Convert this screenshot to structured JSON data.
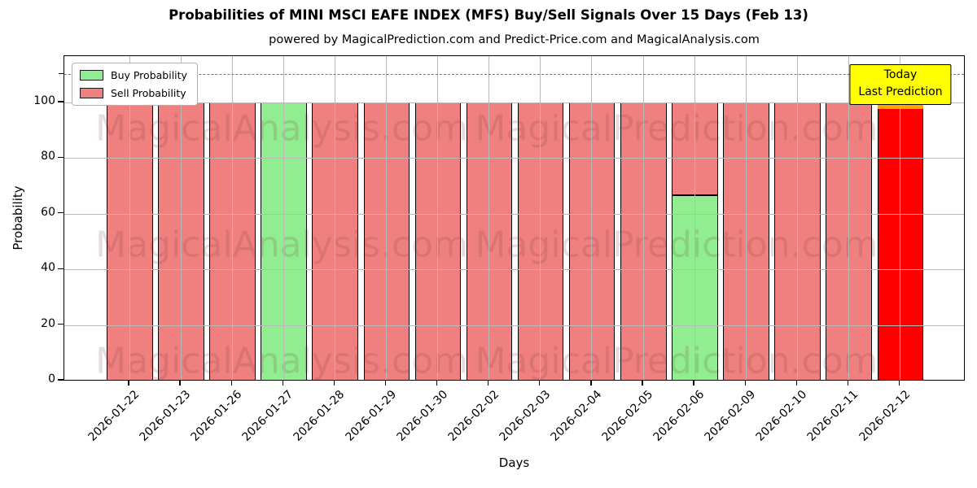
{
  "chart_data": {
    "type": "bar",
    "stacked": true,
    "title": "Probabilities of MINI MSCI EAFE INDEX (MFS) Buy/Sell Signals Over 15 Days (Feb 13)",
    "subtitle": "powered by MagicalPrediction.com and Predict-Price.com and MagicalAnalysis.com",
    "xlabel": "Days",
    "ylabel": "Probability",
    "ylim": [
      0,
      116.7
    ],
    "yticks": [
      0,
      20,
      40,
      60,
      80,
      100
    ],
    "grid": true,
    "dashed_line_y": 110,
    "legend_position": "upper-left",
    "categories": [
      "2026-01-22",
      "2026-01-23",
      "2026-01-26",
      "2026-01-27",
      "2026-01-28",
      "2026-01-29",
      "2026-01-30",
      "2026-02-02",
      "2026-02-03",
      "2026-02-04",
      "2026-02-05",
      "2026-02-06",
      "2026-02-09",
      "2026-02-10",
      "2026-02-11",
      "2026-02-12"
    ],
    "series": [
      {
        "name": "Buy Probability",
        "color": "#90ee90",
        "values": [
          0,
          0,
          0,
          100,
          0,
          0,
          0,
          0,
          0,
          0,
          0,
          66.67,
          0,
          0,
          0,
          0
        ]
      },
      {
        "name": "Sell Probability",
        "color": "#f08080",
        "values": [
          100,
          100,
          100,
          0,
          100,
          100,
          100,
          100,
          100,
          100,
          100,
          33.33,
          100,
          100,
          100,
          100
        ]
      }
    ],
    "today": {
      "index": 15,
      "bar_color": "#ff0000",
      "accent_color": "#ffa500"
    },
    "annotation": {
      "lines": [
        "Today",
        "Last Prediction"
      ],
      "bg_color": "#ffff00"
    },
    "watermarks": {
      "left": "MagicalAnalysis.com",
      "right": "MagicalPrediction.com"
    },
    "colors": {
      "grid": "#b9b9b9",
      "dashed_line": "#757575",
      "bar_edge": "#000000"
    }
  }
}
